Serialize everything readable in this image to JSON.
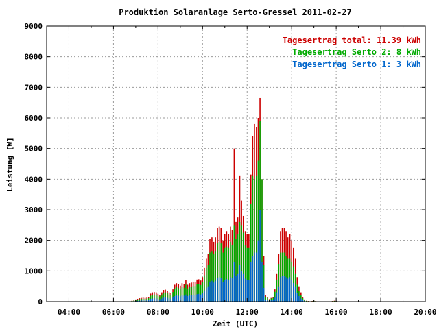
{
  "chart_data": {
    "type": "bar",
    "title": "Produktion Solaranlage Serto-Gressel 2011-02-27",
    "xlabel": "Zeit (UTC)",
    "ylabel": "Leistung [W]",
    "xlim": [
      3.0,
      20.0
    ],
    "ylim": [
      0,
      9000
    ],
    "x_ticks": [
      4,
      6,
      8,
      10,
      12,
      14,
      16,
      18,
      20
    ],
    "x_tick_labels": [
      "04:00",
      "06:00",
      "08:00",
      "10:00",
      "12:00",
      "14:00",
      "16:00",
      "18:00",
      "20:00"
    ],
    "y_ticks": [
      0,
      1000,
      2000,
      3000,
      4000,
      5000,
      6000,
      7000,
      8000,
      9000
    ],
    "y_tick_labels": [
      "0",
      "1000",
      "2000",
      "3000",
      "4000",
      "5000",
      "6000",
      "7000",
      "8000",
      "9000"
    ],
    "grid": true,
    "legend_position": "top-right",
    "legend": [
      {
        "text": "Tagesertrag total: 11.39 kWh",
        "color": "#cc0000"
      },
      {
        "text": "Tagesertrag Serto 2: 8 kWh",
        "color": "#00aa00"
      },
      {
        "text": "Tagesertrag Serto 1: 3 kWh",
        "color": "#0066cc"
      }
    ],
    "series": [
      {
        "name": "total",
        "color": "#cc0000"
      },
      {
        "name": "Serto 2",
        "color": "#00aa00"
      },
      {
        "name": "Serto 1",
        "color": "#0066cc"
      }
    ],
    "x": [
      6.83,
      6.92,
      7.0,
      7.08,
      7.17,
      7.25,
      7.33,
      7.42,
      7.5,
      7.58,
      7.67,
      7.75,
      7.83,
      7.92,
      8.0,
      8.08,
      8.17,
      8.25,
      8.33,
      8.42,
      8.5,
      8.58,
      8.67,
      8.75,
      8.83,
      8.92,
      9.0,
      9.08,
      9.17,
      9.25,
      9.33,
      9.42,
      9.5,
      9.58,
      9.67,
      9.75,
      9.83,
      9.92,
      10.0,
      10.08,
      10.17,
      10.25,
      10.33,
      10.42,
      10.5,
      10.58,
      10.67,
      10.75,
      10.83,
      10.92,
      11.0,
      11.08,
      11.17,
      11.25,
      11.33,
      11.42,
      11.5,
      11.58,
      11.67,
      11.75,
      11.83,
      11.92,
      12.0,
      12.08,
      12.17,
      12.25,
      12.33,
      12.42,
      12.5,
      12.58,
      12.67,
      12.75,
      12.83,
      12.92,
      13.0,
      13.08,
      13.17,
      13.25,
      13.33,
      13.42,
      13.5,
      13.58,
      13.67,
      13.75,
      13.83,
      13.92,
      14.0,
      14.08,
      14.17,
      14.25,
      14.33,
      14.42,
      14.5,
      14.58,
      14.67,
      14.75,
      14.83,
      14.92,
      15.0,
      15.08,
      15.75,
      15.83,
      15.92,
      16.0,
      16.08,
      16.17,
      16.25
    ],
    "total": [
      30,
      50,
      70,
      90,
      110,
      120,
      130,
      120,
      130,
      150,
      260,
      300,
      310,
      300,
      250,
      220,
      300,
      380,
      390,
      350,
      300,
      280,
      400,
      550,
      600,
      560,
      520,
      600,
      580,
      700,
      550,
      600,
      620,
      650,
      650,
      720,
      730,
      690,
      800,
      1100,
      1400,
      1550,
      2050,
      2100,
      1950,
      2100,
      2400,
      2450,
      2400,
      2000,
      2200,
      2300,
      2200,
      2450,
      2350,
      5000,
      2600,
      2750,
      4100,
      3300,
      2800,
      2300,
      2200,
      2200,
      4150,
      5400,
      5800,
      5700,
      6000,
      6650,
      4000,
      1500,
      200,
      150,
      80,
      120,
      150,
      400,
      900,
      1550,
      2300,
      2400,
      2400,
      2300,
      2100,
      2200,
      2000,
      1750,
      1400,
      800,
      500,
      300,
      150,
      70,
      30,
      20,
      10,
      20,
      30,
      20,
      10,
      20,
      30,
      20,
      10
    ],
    "serto2": [
      20,
      35,
      50,
      65,
      80,
      90,
      95,
      90,
      95,
      110,
      190,
      220,
      230,
      220,
      190,
      170,
      230,
      290,
      300,
      270,
      230,
      220,
      310,
      430,
      470,
      440,
      410,
      470,
      450,
      550,
      430,
      470,
      490,
      510,
      510,
      560,
      580,
      540,
      630,
      860,
      1100,
      1200,
      1600,
      1650,
      1550,
      1650,
      1900,
      1950,
      1900,
      1600,
      1750,
      1800,
      1750,
      1950,
      1850,
      2500,
      2050,
      2200,
      2600,
      2500,
      2250,
      1850,
      1750,
      1750,
      3200,
      4100,
      4000,
      4100,
      4600,
      5900,
      4000,
      1200,
      160,
      120,
      60,
      100,
      120,
      320,
      720,
      1230,
      1600,
      1600,
      1600,
      1500,
      1400,
      1400,
      1300,
      1150,
      900,
      550,
      350,
      200,
      110,
      50,
      25,
      15,
      8,
      15,
      25,
      15,
      8,
      15,
      20,
      15,
      8
    ],
    "serto1": [
      10,
      15,
      20,
      25,
      30,
      40,
      50,
      40,
      50,
      60,
      90,
      100,
      110,
      100,
      80,
      70,
      100,
      130,
      140,
      120,
      100,
      90,
      140,
      180,
      200,
      190,
      170,
      200,
      190,
      230,
      180,
      200,
      210,
      220,
      220,
      240,
      250,
      230,
      270,
      360,
      450,
      500,
      650,
      680,
      620,
      680,
      780,
      800,
      780,
      650,
      710,
      740,
      710,
      800,
      760,
      1300,
      850,
      900,
      1200,
      1000,
      900,
      750,
      700,
      700,
      1300,
      1500,
      1600,
      1600,
      2000,
      3000,
      1300,
      450,
      60,
      50,
      25,
      40,
      50,
      130,
      300,
      500,
      800,
      850,
      850,
      800,
      750,
      800,
      700,
      600,
      500,
      280,
      180,
      100,
      50,
      25,
      10,
      8,
      4,
      8,
      10,
      8,
      4,
      8,
      10,
      8,
      4
    ]
  }
}
